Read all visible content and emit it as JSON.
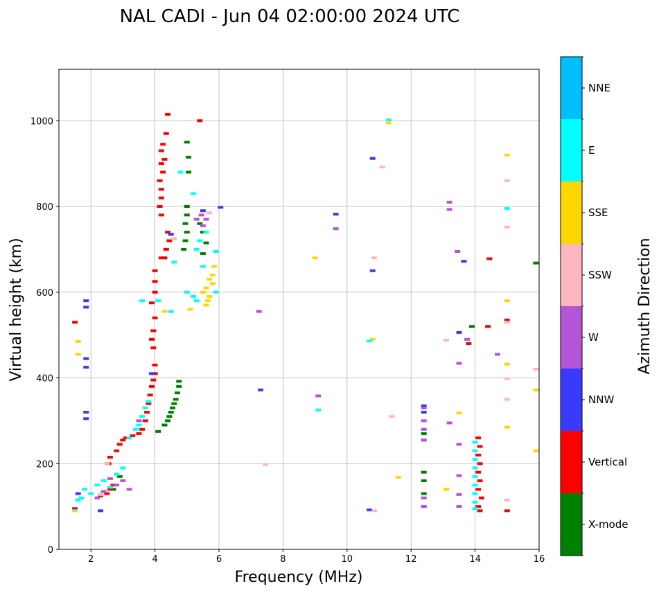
{
  "chart_data": {
    "type": "scatter",
    "title": "NAL CADI - Jun 04 02:00:00 2024 UTC",
    "xlabel": "Frequency (MHz)",
    "ylabel": "Virtual height (km)",
    "xlim": [
      1,
      16
    ],
    "ylim": [
      0,
      1120
    ],
    "xticks": [
      2,
      4,
      6,
      8,
      10,
      12,
      14,
      16
    ],
    "yticks": [
      0,
      200,
      400,
      600,
      800,
      1000
    ],
    "grid": true,
    "colorbar": {
      "label": "Azimuth Direction",
      "categories": [
        {
          "name": "X-mode",
          "color": "#008000"
        },
        {
          "name": "Vertical",
          "color": "#ff0000"
        },
        {
          "name": "NNW",
          "color": "#3a3aff"
        },
        {
          "name": "W",
          "color": "#b455d6"
        },
        {
          "name": "SSW",
          "color": "#ffb6c1"
        },
        {
          "name": "SSE",
          "color": "#ffd700"
        },
        {
          "name": "E",
          "color": "#00ffff"
        },
        {
          "name": "NNE",
          "color": "#00bfff"
        }
      ]
    },
    "series": [
      {
        "name": "X-mode",
        "points": [
          [
            2.7,
            140
          ],
          [
            2.9,
            170
          ],
          [
            4.1,
            275
          ],
          [
            4.3,
            290
          ],
          [
            4.4,
            300
          ],
          [
            4.45,
            310
          ],
          [
            4.5,
            320
          ],
          [
            4.55,
            330
          ],
          [
            4.6,
            340
          ],
          [
            4.65,
            350
          ],
          [
            4.7,
            365
          ],
          [
            4.75,
            380
          ],
          [
            4.75,
            392
          ],
          [
            4.9,
            700
          ],
          [
            4.95,
            720
          ],
          [
            5.0,
            740
          ],
          [
            4.95,
            760
          ],
          [
            5.0,
            780
          ],
          [
            5.0,
            800
          ],
          [
            5.05,
            880
          ],
          [
            5.05,
            915
          ],
          [
            5.0,
            950
          ],
          [
            5.5,
            690
          ],
          [
            5.6,
            715
          ],
          [
            5.5,
            740
          ],
          [
            5.4,
            760
          ],
          [
            12.4,
            180
          ],
          [
            12.4,
            160
          ],
          [
            12.4,
            130
          ],
          [
            12.4,
            270
          ],
          [
            12.4,
            255
          ],
          [
            13.9,
            520
          ],
          [
            15.9,
            668
          ]
        ]
      },
      {
        "name": "Vertical",
        "points": [
          [
            2.3,
            125
          ],
          [
            2.5,
            130
          ],
          [
            2.6,
            140
          ],
          [
            2.7,
            150
          ],
          [
            2.55,
            200
          ],
          [
            2.6,
            215
          ],
          [
            2.8,
            230
          ],
          [
            2.9,
            245
          ],
          [
            3.0,
            255
          ],
          [
            3.1,
            260
          ],
          [
            3.3,
            265
          ],
          [
            3.5,
            270
          ],
          [
            3.6,
            280
          ],
          [
            3.7,
            300
          ],
          [
            3.75,
            320
          ],
          [
            3.8,
            340
          ],
          [
            3.85,
            360
          ],
          [
            3.9,
            380
          ],
          [
            3.95,
            395
          ],
          [
            4.0,
            410
          ],
          [
            4.0,
            430
          ],
          [
            3.95,
            470
          ],
          [
            3.9,
            490
          ],
          [
            3.95,
            510
          ],
          [
            4.0,
            540
          ],
          [
            3.9,
            575
          ],
          [
            4.0,
            600
          ],
          [
            4.0,
            625
          ],
          [
            4.0,
            650
          ],
          [
            4.2,
            680
          ],
          [
            4.3,
            680
          ],
          [
            4.35,
            700
          ],
          [
            4.45,
            720
          ],
          [
            4.4,
            740
          ],
          [
            4.2,
            780
          ],
          [
            4.15,
            800
          ],
          [
            4.2,
            820
          ],
          [
            4.2,
            840
          ],
          [
            4.15,
            860
          ],
          [
            4.25,
            880
          ],
          [
            4.2,
            900
          ],
          [
            4.3,
            910
          ],
          [
            4.2,
            930
          ],
          [
            4.25,
            945
          ],
          [
            4.35,
            970
          ],
          [
            4.4,
            1015
          ],
          [
            1.5,
            530
          ],
          [
            5.4,
            1000
          ],
          [
            14.1,
            260
          ],
          [
            14.15,
            240
          ],
          [
            14.1,
            220
          ],
          [
            14.15,
            200
          ],
          [
            14.1,
            180
          ],
          [
            14.15,
            160
          ],
          [
            14.1,
            140
          ],
          [
            14.2,
            120
          ],
          [
            14.1,
            100
          ],
          [
            14.15,
            90
          ],
          [
            14.4,
            520
          ],
          [
            14.45,
            678
          ],
          [
            15.0,
            90
          ],
          [
            15.0,
            535
          ],
          [
            13.8,
            480
          ]
        ]
      },
      {
        "name": "NNW",
        "points": [
          [
            1.5,
            95
          ],
          [
            1.6,
            130
          ],
          [
            1.85,
            580
          ],
          [
            1.85,
            565
          ],
          [
            1.85,
            445
          ],
          [
            1.85,
            425
          ],
          [
            1.85,
            320
          ],
          [
            1.85,
            305
          ],
          [
            2.3,
            90
          ],
          [
            3.9,
            410
          ],
          [
            4.5,
            735
          ],
          [
            5.5,
            790
          ],
          [
            6.05,
            798
          ],
          [
            7.3,
            372
          ],
          [
            9.65,
            782
          ],
          [
            10.8,
            912
          ],
          [
            10.8,
            650
          ],
          [
            10.7,
            92
          ],
          [
            12.4,
            320
          ],
          [
            12.4,
            335
          ],
          [
            12.4,
            100
          ],
          [
            13.5,
            506
          ],
          [
            13.65,
            672
          ]
        ]
      },
      {
        "name": "W",
        "points": [
          [
            2.2,
            120
          ],
          [
            2.4,
            135
          ],
          [
            2.6,
            165
          ],
          [
            2.8,
            150
          ],
          [
            3.0,
            160
          ],
          [
            3.2,
            140
          ],
          [
            3.5,
            300
          ],
          [
            5.3,
            770
          ],
          [
            5.45,
            780
          ],
          [
            5.6,
            770
          ],
          [
            5.5,
            755
          ],
          [
            7.25,
            555
          ],
          [
            9.1,
            358
          ],
          [
            9.65,
            748
          ],
          [
            12.4,
            330
          ],
          [
            12.4,
            300
          ],
          [
            12.4,
            280
          ],
          [
            12.4,
            255
          ],
          [
            12.4,
            120
          ],
          [
            12.4,
            100
          ],
          [
            13.2,
            810
          ],
          [
            13.2,
            793
          ],
          [
            13.2,
            295
          ],
          [
            13.45,
            695
          ],
          [
            13.5,
            434
          ],
          [
            13.5,
            245
          ],
          [
            13.5,
            172
          ],
          [
            13.5,
            128
          ],
          [
            13.5,
            100
          ],
          [
            13.75,
            490
          ],
          [
            14.7,
            455
          ]
        ]
      },
      {
        "name": "SSW",
        "points": [
          [
            2.3,
            128
          ],
          [
            2.5,
            200
          ],
          [
            4.6,
            725
          ],
          [
            5.7,
            785
          ],
          [
            7.45,
            198
          ],
          [
            11.1,
            892
          ],
          [
            10.85,
            680
          ],
          [
            10.85,
            90
          ],
          [
            11.4,
            310
          ],
          [
            13.1,
            488
          ],
          [
            15.0,
            860
          ],
          [
            15.0,
            752
          ],
          [
            15.0,
            530
          ],
          [
            15.0,
            398
          ],
          [
            15.0,
            350
          ],
          [
            15.0,
            115
          ],
          [
            15.9,
            420
          ]
        ]
      },
      {
        "name": "SSE",
        "points": [
          [
            1.5,
            90
          ],
          [
            1.6,
            485
          ],
          [
            1.6,
            455
          ],
          [
            4.3,
            555
          ],
          [
            5.1,
            560
          ],
          [
            5.5,
            600
          ],
          [
            5.6,
            610
          ],
          [
            5.7,
            590
          ],
          [
            5.65,
            580
          ],
          [
            5.8,
            620
          ],
          [
            5.8,
            640
          ],
          [
            5.85,
            660
          ],
          [
            5.7,
            630
          ],
          [
            5.6,
            570
          ],
          [
            9.0,
            680
          ],
          [
            10.8,
            490
          ],
          [
            11.3,
            995
          ],
          [
            11.6,
            168
          ],
          [
            13.1,
            140
          ],
          [
            13.5,
            318
          ],
          [
            15.0,
            920
          ],
          [
            15.0,
            580
          ],
          [
            15.0,
            432
          ],
          [
            15.0,
            285
          ],
          [
            15.9,
            372
          ],
          [
            15.9,
            230
          ]
        ]
      },
      {
        "name": "E",
        "points": [
          [
            1.6,
            115
          ],
          [
            1.7,
            120
          ],
          [
            1.8,
            140
          ],
          [
            2.0,
            130
          ],
          [
            2.2,
            150
          ],
          [
            2.4,
            160
          ],
          [
            2.6,
            145
          ],
          [
            2.8,
            175
          ],
          [
            3.0,
            190
          ],
          [
            3.2,
            260
          ],
          [
            3.4,
            280
          ],
          [
            3.5,
            290
          ],
          [
            3.6,
            310
          ],
          [
            3.7,
            330
          ],
          [
            3.8,
            345
          ],
          [
            3.6,
            580
          ],
          [
            4.1,
            580
          ],
          [
            4.5,
            555
          ],
          [
            4.6,
            670
          ],
          [
            4.8,
            880
          ],
          [
            5.2,
            830
          ],
          [
            5.0,
            600
          ],
          [
            5.2,
            590
          ],
          [
            5.3,
            580
          ],
          [
            5.5,
            660
          ],
          [
            5.4,
            720
          ],
          [
            5.6,
            740
          ],
          [
            5.3,
            700
          ],
          [
            5.9,
            695
          ],
          [
            5.9,
            600
          ],
          [
            9.1,
            325
          ],
          [
            10.7,
            486
          ],
          [
            11.3,
            1002
          ],
          [
            14.0,
            250
          ],
          [
            14.0,
            230
          ],
          [
            14.0,
            210
          ],
          [
            14.0,
            190
          ],
          [
            14.0,
            170
          ],
          [
            14.0,
            150
          ],
          [
            14.0,
            130
          ],
          [
            14.0,
            110
          ],
          [
            14.0,
            95
          ],
          [
            15.0,
            795
          ]
        ]
      },
      {
        "name": "NNE",
        "points": []
      }
    ]
  }
}
